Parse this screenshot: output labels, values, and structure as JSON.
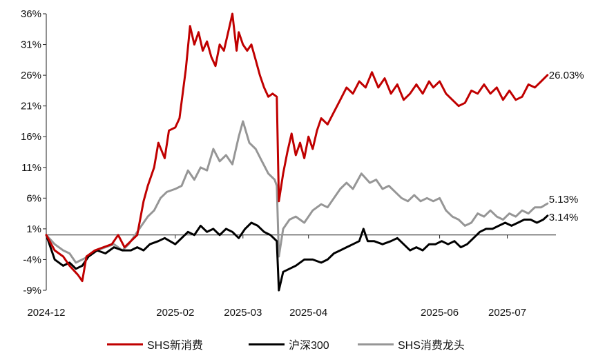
{
  "chart_data": {
    "type": "line",
    "title": "",
    "xlabel": "",
    "ylabel": "",
    "ylim": [
      -9,
      36
    ],
    "yticks": [
      36,
      31,
      26,
      21,
      16,
      11,
      6,
      1,
      -4,
      -9
    ],
    "ytick_labels": [
      "36%",
      "31%",
      "26%",
      "21%",
      "16%",
      "11%",
      "6%",
      "1%",
      "-4%",
      "-9%"
    ],
    "xlim": [
      "2024-12-02",
      "2025-07-31"
    ],
    "xticks": [
      "2024-12-02",
      "2025-02-01",
      "2025-03-05",
      "2025-04-05",
      "2025-06-06",
      "2025-07-08"
    ],
    "xtick_labels": [
      "2024-12",
      "2025-02",
      "2025-03",
      "2025-04",
      "2025-06",
      "2025-07"
    ],
    "baseline": 0,
    "series": [
      {
        "name": "SHS新消费",
        "color": "#C00000",
        "end_label": "26.03%",
        "points": [
          [
            "2024-12-02",
            0
          ],
          [
            "2024-12-06",
            -2.5
          ],
          [
            "2024-12-10",
            -3.5
          ],
          [
            "2024-12-13",
            -5
          ],
          [
            "2024-12-17",
            -6.5
          ],
          [
            "2024-12-19",
            -7.5
          ],
          [
            "2024-12-21",
            -3.5
          ],
          [
            "2024-12-25",
            -2.5
          ],
          [
            "2024-12-29",
            -2
          ],
          [
            "2025-01-02",
            -1.5
          ],
          [
            "2025-01-05",
            0
          ],
          [
            "2025-01-08",
            -2
          ],
          [
            "2025-01-11",
            -1
          ],
          [
            "2025-01-14",
            0
          ],
          [
            "2025-01-17",
            5.5
          ],
          [
            "2025-01-19",
            8
          ],
          [
            "2025-01-22",
            11
          ],
          [
            "2025-01-24",
            15
          ],
          [
            "2025-01-27",
            12.5
          ],
          [
            "2025-01-29",
            17
          ],
          [
            "2025-02-01",
            17.5
          ],
          [
            "2025-02-03",
            19
          ],
          [
            "2025-02-06",
            27
          ],
          [
            "2025-02-08",
            34
          ],
          [
            "2025-02-10",
            31
          ],
          [
            "2025-02-12",
            33
          ],
          [
            "2025-02-14",
            30
          ],
          [
            "2025-02-16",
            31.5
          ],
          [
            "2025-02-18",
            29
          ],
          [
            "2025-02-20",
            27.5
          ],
          [
            "2025-02-22",
            31
          ],
          [
            "2025-02-24",
            30
          ],
          [
            "2025-02-26",
            33
          ],
          [
            "2025-02-28",
            36
          ],
          [
            "2025-03-02",
            30
          ],
          [
            "2025-03-03",
            33
          ],
          [
            "2025-03-05",
            31
          ],
          [
            "2025-03-07",
            30
          ],
          [
            "2025-03-09",
            31
          ],
          [
            "2025-03-11",
            28.5
          ],
          [
            "2025-03-13",
            26
          ],
          [
            "2025-03-15",
            24
          ],
          [
            "2025-03-17",
            22.5
          ],
          [
            "2025-03-19",
            23
          ],
          [
            "2025-03-21",
            22.5
          ],
          [
            "2025-03-22",
            5.5
          ],
          [
            "2025-03-24",
            10
          ],
          [
            "2025-03-26",
            13.5
          ],
          [
            "2025-03-28",
            16.5
          ],
          [
            "2025-03-30",
            13
          ],
          [
            "2025-04-01",
            15
          ],
          [
            "2025-04-03",
            12.5
          ],
          [
            "2025-04-05",
            16
          ],
          [
            "2025-04-07",
            14
          ],
          [
            "2025-04-09",
            17
          ],
          [
            "2025-04-11",
            19
          ],
          [
            "2025-04-14",
            18
          ],
          [
            "2025-04-17",
            20
          ],
          [
            "2025-04-20",
            22
          ],
          [
            "2025-04-23",
            24
          ],
          [
            "2025-04-26",
            23
          ],
          [
            "2025-04-29",
            25
          ],
          [
            "2025-05-02",
            24
          ],
          [
            "2025-05-05",
            26.5
          ],
          [
            "2025-05-08",
            24
          ],
          [
            "2025-05-11",
            25.5
          ],
          [
            "2025-05-14",
            23
          ],
          [
            "2025-05-17",
            24.5
          ],
          [
            "2025-05-20",
            22
          ],
          [
            "2025-05-23",
            23
          ],
          [
            "2025-05-26",
            24.5
          ],
          [
            "2025-05-29",
            23
          ],
          [
            "2025-06-01",
            25
          ],
          [
            "2025-06-03",
            24
          ],
          [
            "2025-06-06",
            25
          ],
          [
            "2025-06-09",
            23
          ],
          [
            "2025-06-12",
            22
          ],
          [
            "2025-06-15",
            21
          ],
          [
            "2025-06-18",
            21.5
          ],
          [
            "2025-06-21",
            23.5
          ],
          [
            "2025-06-24",
            23
          ],
          [
            "2025-06-27",
            24.5
          ],
          [
            "2025-06-30",
            23
          ],
          [
            "2025-07-03",
            24
          ],
          [
            "2025-07-06",
            22
          ],
          [
            "2025-07-09",
            23.5
          ],
          [
            "2025-07-12",
            22
          ],
          [
            "2025-07-15",
            22.5
          ],
          [
            "2025-07-18",
            24.5
          ],
          [
            "2025-07-21",
            24
          ],
          [
            "2025-07-24",
            25
          ],
          [
            "2025-07-27",
            26.03
          ]
        ]
      },
      {
        "name": "沪深300",
        "color": "#000000",
        "end_label": "3.14%",
        "points": [
          [
            "2024-12-02",
            0
          ],
          [
            "2024-12-06",
            -4
          ],
          [
            "2024-12-10",
            -5
          ],
          [
            "2024-12-13",
            -4.5
          ],
          [
            "2024-12-16",
            -5.5
          ],
          [
            "2024-12-19",
            -5
          ],
          [
            "2024-12-22",
            -3.5
          ],
          [
            "2024-12-26",
            -2.5
          ],
          [
            "2024-12-30",
            -3
          ],
          [
            "2025-01-03",
            -2
          ],
          [
            "2025-01-07",
            -2.5
          ],
          [
            "2025-01-11",
            -2.5
          ],
          [
            "2025-01-14",
            -2
          ],
          [
            "2025-01-17",
            -2.5
          ],
          [
            "2025-01-20",
            -1.5
          ],
          [
            "2025-01-24",
            -1
          ],
          [
            "2025-01-27",
            -0.5
          ],
          [
            "2025-02-01",
            -1.5
          ],
          [
            "2025-02-04",
            -0.5
          ],
          [
            "2025-02-07",
            0.5
          ],
          [
            "2025-02-10",
            0
          ],
          [
            "2025-02-13",
            1.5
          ],
          [
            "2025-02-16",
            0.5
          ],
          [
            "2025-02-19",
            1
          ],
          [
            "2025-02-22",
            0
          ],
          [
            "2025-02-25",
            1
          ],
          [
            "2025-02-28",
            0.5
          ],
          [
            "2025-03-03",
            -0.5
          ],
          [
            "2025-03-06",
            1
          ],
          [
            "2025-03-09",
            2
          ],
          [
            "2025-03-12",
            1.5
          ],
          [
            "2025-03-15",
            0.5
          ],
          [
            "2025-03-18",
            0
          ],
          [
            "2025-03-21",
            -1
          ],
          [
            "2025-03-22",
            -9
          ],
          [
            "2025-03-24",
            -6
          ],
          [
            "2025-03-27",
            -5.5
          ],
          [
            "2025-03-30",
            -5
          ],
          [
            "2025-04-03",
            -4
          ],
          [
            "2025-04-07",
            -4
          ],
          [
            "2025-04-11",
            -4.5
          ],
          [
            "2025-04-14",
            -4
          ],
          [
            "2025-04-17",
            -3
          ],
          [
            "2025-04-20",
            -2.5
          ],
          [
            "2025-04-23",
            -2
          ],
          [
            "2025-04-26",
            -1.5
          ],
          [
            "2025-04-29",
            -1
          ],
          [
            "2025-05-01",
            1
          ],
          [
            "2025-05-03",
            -1
          ],
          [
            "2025-05-06",
            -1
          ],
          [
            "2025-05-10",
            -1.5
          ],
          [
            "2025-05-14",
            -1
          ],
          [
            "2025-05-17",
            -0.5
          ],
          [
            "2025-05-20",
            -1.5
          ],
          [
            "2025-05-23",
            -2.5
          ],
          [
            "2025-05-26",
            -2
          ],
          [
            "2025-05-29",
            -2.5
          ],
          [
            "2025-06-01",
            -1.5
          ],
          [
            "2025-06-04",
            -1.5
          ],
          [
            "2025-06-07",
            -1
          ],
          [
            "2025-06-10",
            -1.5
          ],
          [
            "2025-06-13",
            -1
          ],
          [
            "2025-06-16",
            -2
          ],
          [
            "2025-06-19",
            -1.5
          ],
          [
            "2025-06-22",
            -0.5
          ],
          [
            "2025-06-25",
            0.5
          ],
          [
            "2025-06-28",
            1
          ],
          [
            "2025-07-01",
            1
          ],
          [
            "2025-07-04",
            1.5
          ],
          [
            "2025-07-07",
            2
          ],
          [
            "2025-07-10",
            1.5
          ],
          [
            "2025-07-13",
            2
          ],
          [
            "2025-07-16",
            2.5
          ],
          [
            "2025-07-19",
            2.5
          ],
          [
            "2025-07-22",
            2
          ],
          [
            "2025-07-25",
            2.5
          ],
          [
            "2025-07-27",
            3.14
          ]
        ]
      },
      {
        "name": "SHS消费龙头",
        "color": "#969696",
        "end_label": "5.13%",
        "points": [
          [
            "2024-12-02",
            0
          ],
          [
            "2024-12-06",
            -1.5
          ],
          [
            "2024-12-10",
            -2.5
          ],
          [
            "2024-12-13",
            -3
          ],
          [
            "2024-12-16",
            -4.5
          ],
          [
            "2024-12-19",
            -4
          ],
          [
            "2024-12-22",
            -3.5
          ],
          [
            "2024-12-26",
            -2.5
          ],
          [
            "2024-12-30",
            -2
          ],
          [
            "2025-01-03",
            -1.5
          ],
          [
            "2025-01-07",
            -2.5
          ],
          [
            "2025-01-10",
            -1.5
          ],
          [
            "2025-01-13",
            0
          ],
          [
            "2025-01-16",
            1.5
          ],
          [
            "2025-01-19",
            3
          ],
          [
            "2025-01-22",
            4
          ],
          [
            "2025-01-25",
            6
          ],
          [
            "2025-01-28",
            7
          ],
          [
            "2025-02-01",
            7.5
          ],
          [
            "2025-02-04",
            8
          ],
          [
            "2025-02-07",
            10.5
          ],
          [
            "2025-02-10",
            9
          ],
          [
            "2025-02-13",
            11
          ],
          [
            "2025-02-16",
            10.5
          ],
          [
            "2025-02-19",
            14
          ],
          [
            "2025-02-22",
            12
          ],
          [
            "2025-02-25",
            13
          ],
          [
            "2025-02-28",
            11.5
          ],
          [
            "2025-03-03",
            16
          ],
          [
            "2025-03-05",
            18.5
          ],
          [
            "2025-03-08",
            15
          ],
          [
            "2025-03-11",
            14
          ],
          [
            "2025-03-14",
            12
          ],
          [
            "2025-03-17",
            10
          ],
          [
            "2025-03-20",
            9
          ],
          [
            "2025-03-21",
            8
          ],
          [
            "2025-03-22",
            -3.5
          ],
          [
            "2025-03-24",
            1
          ],
          [
            "2025-03-27",
            2.5
          ],
          [
            "2025-03-30",
            3
          ],
          [
            "2025-04-03",
            2
          ],
          [
            "2025-04-07",
            4
          ],
          [
            "2025-04-11",
            5
          ],
          [
            "2025-04-14",
            4.5
          ],
          [
            "2025-04-17",
            6
          ],
          [
            "2025-04-20",
            7.5
          ],
          [
            "2025-04-23",
            8.5
          ],
          [
            "2025-04-26",
            7.5
          ],
          [
            "2025-04-30",
            10
          ],
          [
            "2025-05-04",
            8.5
          ],
          [
            "2025-05-07",
            9
          ],
          [
            "2025-05-10",
            7.5
          ],
          [
            "2025-05-13",
            8
          ],
          [
            "2025-05-16",
            7
          ],
          [
            "2025-05-19",
            6
          ],
          [
            "2025-05-22",
            5.5
          ],
          [
            "2025-05-25",
            6.5
          ],
          [
            "2025-05-28",
            5.5
          ],
          [
            "2025-05-31",
            6
          ],
          [
            "2025-06-03",
            5.5
          ],
          [
            "2025-06-06",
            6
          ],
          [
            "2025-06-09",
            4
          ],
          [
            "2025-06-12",
            3
          ],
          [
            "2025-06-15",
            2.5
          ],
          [
            "2025-06-18",
            1.5
          ],
          [
            "2025-06-21",
            2
          ],
          [
            "2025-06-24",
            3.5
          ],
          [
            "2025-06-27",
            3
          ],
          [
            "2025-06-30",
            4
          ],
          [
            "2025-07-03",
            3
          ],
          [
            "2025-07-06",
            2.5
          ],
          [
            "2025-07-09",
            3.5
          ],
          [
            "2025-07-12",
            3
          ],
          [
            "2025-07-15",
            4
          ],
          [
            "2025-07-18",
            3.5
          ],
          [
            "2025-07-21",
            4.5
          ],
          [
            "2025-07-24",
            4.5
          ],
          [
            "2025-07-27",
            5.13
          ]
        ]
      }
    ],
    "legend": {
      "placement": "bottom"
    }
  }
}
